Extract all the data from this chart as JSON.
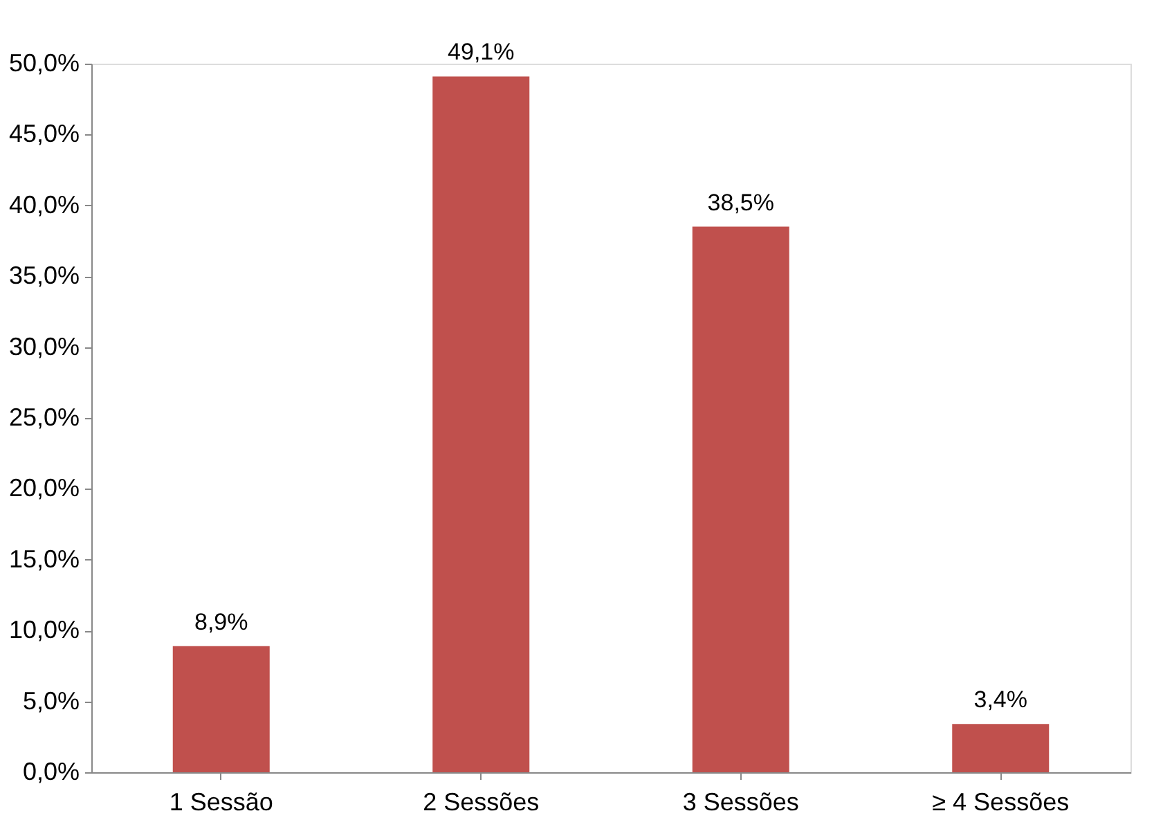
{
  "chart_data": {
    "type": "bar",
    "categories": [
      "1 Sessão",
      "2 Sessões",
      "3 Sessões",
      "≥ 4 Sessões"
    ],
    "values": [
      8.9,
      49.1,
      38.5,
      3.4
    ],
    "value_labels": [
      "8,9%",
      "49,1%",
      "38,5%",
      "3,4%"
    ],
    "color": "#c0504d",
    "ylim": [
      0,
      50
    ],
    "yticks": [
      {
        "value": 0,
        "label": "0,0%"
      },
      {
        "value": 5,
        "label": "5,0%"
      },
      {
        "value": 10,
        "label": "10,0%"
      },
      {
        "value": 15,
        "label": "15,0%"
      },
      {
        "value": 20,
        "label": "20,0%"
      },
      {
        "value": 25,
        "label": "25,0%"
      },
      {
        "value": 30,
        "label": "30,0%"
      },
      {
        "value": 35,
        "label": "35,0%"
      },
      {
        "value": 40,
        "label": "40,0%"
      },
      {
        "value": 45,
        "label": "45,0%"
      },
      {
        "value": 50,
        "label": "50,0%"
      }
    ],
    "grid": false
  }
}
